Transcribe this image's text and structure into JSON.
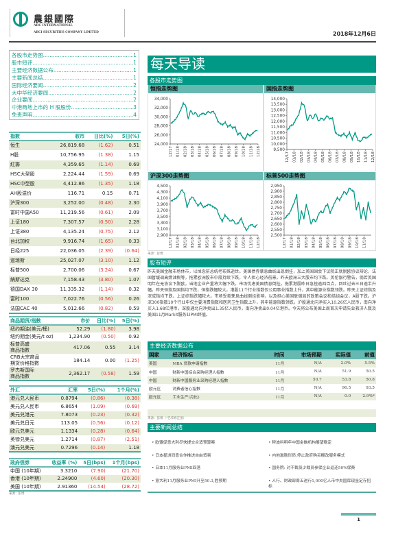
{
  "header": {
    "logo_cn": "農銀國際",
    "logo_en1": "ABC INTERNATIONAL",
    "logo_en2": "ABCI SECURITIES COMPANY LIMITED",
    "date": "2018年12月6日"
  },
  "toc": [
    {
      "label": "各股市走势图",
      "page": "1"
    },
    {
      "label": "股市短评",
      "page": "1"
    },
    {
      "label": "主要经济数据公布",
      "page": "1"
    },
    {
      "label": "主要新闻总结",
      "page": "1"
    },
    {
      "label": "国际经济要闻",
      "page": "2"
    },
    {
      "label": "大中华经济要闻",
      "page": "2"
    },
    {
      "label": "企业要闻",
      "page": "2"
    },
    {
      "label": "中港两地上市的 H 股股份",
      "page": "3"
    },
    {
      "label": "免责声明",
      "page": "4"
    }
  ],
  "indices": {
    "headers": [
      "指數",
      "收市",
      "日比(%)",
      "5日(%)"
    ],
    "rows": [
      [
        "恒生",
        "26,819.68",
        "(1.62)",
        "0.51"
      ],
      [
        "H股",
        "10,756.95",
        "(1.38)",
        "1.15"
      ],
      [
        "紅籌",
        "4,359.65",
        "(1.14)",
        "0.69"
      ],
      [
        "HSC大型股",
        "2,224.44",
        "(1.59)",
        "0.69"
      ],
      [
        "HSC中型股",
        "4,412.86",
        "(1.35)",
        "1.18"
      ],
      [
        "AH股溢价",
        "116.71",
        "0.15",
        "0.71"
      ],
      [
        "沪深300",
        "3,252.00",
        "(0.48)",
        "2.30"
      ],
      [
        "富时中国A50",
        "11,219.56",
        "(0.61)",
        "2.09"
      ],
      [
        "上证180",
        "7,307.57",
        "(0.50)",
        "2.28"
      ],
      [
        "上证380",
        "4,135.24",
        "(0.75)",
        "2.12"
      ],
      [
        "台北加权",
        "9,916.74",
        "(1.65)",
        "0.33"
      ],
      [
        "日经225",
        "22,036.05",
        "(2.39)",
        "(0.64)"
      ],
      [
        "道琼斯",
        "25,027.07",
        "(3.10)",
        "1.12"
      ],
      [
        "标普500",
        "2,700.06",
        "(3.24)",
        "0.67"
      ],
      [
        "納斯达克",
        "7,158.43",
        "(3.80)",
        "1.07"
      ],
      [
        "德国DAX 30",
        "11,335.32",
        "(1.14)",
        "0.32"
      ],
      [
        "富时100",
        "7,022.76",
        "(0.56)",
        "0.26"
      ],
      [
        "法国CAC 40",
        "5,012.66",
        "(0.82)",
        "0.59"
      ]
    ]
  },
  "commodities": {
    "headers": [
      "商品期货/指數",
      "市价",
      "日比(%)",
      "5日(%)"
    ],
    "rows": [
      [
        "纽约期油(美元/桶)",
        "52.29",
        "(1.80)",
        "3.98"
      ],
      [
        "纽约期金(美元/t oz)",
        "1,234.90",
        "(0.50)",
        "0.92"
      ],
      [
        "标普高盛\n商品指數",
        "417.06",
        "0.55",
        "3.14"
      ],
      [
        "CRB大宗商品\n期货价格指數",
        "184.14",
        "0.00",
        "(1.25)"
      ],
      [
        "罗杰斯国际\n商品指數",
        "2,362.17",
        "(0.58)",
        "1.59"
      ]
    ]
  },
  "fx": {
    "headers": [
      "外汇",
      "汇率",
      "5日(%)",
      "1个月(%)"
    ],
    "rows": [
      [
        "港元兑人民币",
        "0.8794",
        "(0.86)",
        "(0.38)"
      ],
      [
        "美元兑人民币",
        "6.8654",
        "(1.09)",
        "(0.69)"
      ],
      [
        "美元兑港元",
        "7.8073",
        "(0.23)",
        "(0.32)"
      ],
      [
        "美元兑日元",
        "113.05",
        "(0.56)",
        "(0.12)"
      ],
      [
        "欧元兑美元",
        "1.1334",
        "(0.28)",
        "(0.64)"
      ],
      [
        "英镑兑美元",
        "1.2714",
        "(0.87)",
        "(2.51)"
      ],
      [
        "澳元兑美元",
        "0.7296",
        "(0.14)",
        "1.18"
      ]
    ]
  },
  "bonds": {
    "headers": [
      "政府债券",
      "收益率 (%)",
      "5日(bps)",
      "1个月(bps)"
    ],
    "rows": [
      [
        "中国 (10年期)",
        "3.3210",
        "(7.90)",
        "(21.70)"
      ],
      [
        "香港 (10年期)",
        "2.24900",
        "(4.60)",
        "(20.30)"
      ],
      [
        "美国 (10年期)",
        "2.91360",
        "(14.54)",
        "(28.72)"
      ]
    ],
    "source": "来源：彭博"
  },
  "banner": "每天导读",
  "charts_section": {
    "title": "各股市走势图",
    "source": "来源：彭博"
  },
  "chart_data": [
    {
      "type": "line",
      "title": "恒指走势图",
      "ylim": [
        24000,
        34000
      ],
      "yticks": [
        "24,000",
        "26,000",
        "28,000",
        "30,000",
        "32,000",
        "34,000"
      ],
      "xticks": [
        "12/17",
        "01/18",
        "02/18",
        "03/18",
        "04/18",
        "05/18",
        "06/18",
        "07/18",
        "08/18",
        "09/18",
        "10/18",
        "11/18",
        "12/18"
      ],
      "values": [
        28500,
        29000,
        29500,
        30500,
        31500,
        33000,
        32500,
        29500,
        31500,
        30500,
        31000,
        30000,
        30500,
        30800,
        30500,
        31200,
        30800,
        31300,
        30500,
        29000,
        28500,
        28300,
        28800,
        27800,
        28200,
        27500,
        27800,
        26000,
        26500,
        25500,
        25000,
        26200,
        25800,
        26300,
        26800,
        27100
      ]
    },
    {
      "type": "line",
      "title": "国指走势图",
      "ylim": [
        9500,
        14000
      ],
      "yticks": [
        "9,500",
        "10,000",
        "10,500",
        "11,000",
        "11,500",
        "12,000",
        "12,500",
        "13,000",
        "13,500",
        "14,000"
      ],
      "xticks": [
        "12/17",
        "01/18",
        "02/18",
        "03/18",
        "04/18",
        "05/18",
        "06/18",
        "07/18",
        "08/18",
        "09/18",
        "10/18",
        "11/18",
        "12/18"
      ],
      "values": [
        11200,
        11600,
        11700,
        12200,
        12600,
        13600,
        13400,
        12000,
        12600,
        12200,
        12700,
        12000,
        12300,
        12100,
        12500,
        12200,
        12300,
        11000,
        10800,
        10700,
        10900,
        10600,
        11000,
        10400,
        11000,
        10300,
        10200,
        10600,
        10500,
        10700,
        10900
      ]
    },
    {
      "type": "line",
      "title": "沪深300走势图",
      "ylim": [
        2900,
        4500
      ],
      "yticks": [
        "2,900",
        "3,100",
        "3,300",
        "3,500",
        "3,700",
        "3,900",
        "4,100",
        "4,300",
        "4,500"
      ],
      "xticks": [
        "12/17",
        "01/18",
        "02/18",
        "03/18",
        "04/18",
        "05/18",
        "06/18",
        "07/18",
        "08/18",
        "09/18",
        "10/18",
        "11/18",
        "12/18"
      ],
      "values": [
        4000,
        4050,
        4100,
        4200,
        4380,
        4250,
        3800,
        4050,
        4150,
        4000,
        3850,
        3950,
        3800,
        3850,
        3900,
        3850,
        3800,
        3750,
        3500,
        3350,
        3550,
        3450,
        3350,
        3400,
        3250,
        3300,
        3450,
        3200,
        3050,
        3200,
        3250,
        3150,
        3250
      ]
    },
    {
      "type": "line",
      "title": "标普500走势图",
      "ylim": [
        2500,
        2950
      ],
      "yticks": [
        "2,500",
        "2,550",
        "2,600",
        "2,650",
        "2,700",
        "2,750",
        "2,800",
        "2,850",
        "2,900",
        "2,950"
      ],
      "xticks": [
        "12/17",
        "01/18",
        "02/18",
        "03/18",
        "04/18",
        "05/18",
        "06/18",
        "07/18",
        "08/18",
        "09/18",
        "10/18",
        "11/18"
      ],
      "values": [
        2650,
        2680,
        2700,
        2750,
        2800,
        2870,
        2600,
        2720,
        2650,
        2780,
        2700,
        2600,
        2650,
        2620,
        2680,
        2720,
        2700,
        2760,
        2780,
        2700,
        2750,
        2800,
        2840,
        2820,
        2860,
        2900,
        2870,
        2930,
        2910,
        2900,
        2730,
        2800,
        2650,
        2750,
        2640,
        2800,
        2700
      ]
    }
  ],
  "commentary": {
    "title": "股市短评",
    "text": "昨天美国金融市场休市，以悼念前总统老布殊逝世。美国债券孳息曲线出现倒挂，加上英国国会下议院正就脱欧协议辩论，法国暂缓调高燃油税等，拖累欧洲股市中段持续下跌，令人担心经济前景。昨天欧洲三大股市均下跌。英伦银行警告，倘若英国明年在无协议下脱欧，当地企业产量将大幅下跌。市场忧虑美国债息倒挂，拖累港股昨日急挫逾四百点，回吐过去三日逾半升幅。昨天恒指及国指均下跌，恒指跌幅较大。港股11个行业指数仅公用事业指数上升，其中能源业指数领跌。昨天上证综指及深成指均下跌，上证综指跌幅较大。市场受美孳息曲线倒挂影响，以及担心美国联储局的政策会议和结组会议，A股下跌。沪深300指数10个行业中仅主要消费指数和医药卫生指数上升，其中能源指数领跌。沪股通北向净买入10.26亿人民币，南向净买入1.68亿港币。深股通北向净卖出1.35亿人民币，南向净卖出0.04亿港币。今天将公布美国上周首次申请失业救济人数及美国11月Markit服务业PMI终值。"
  },
  "economic": {
    "title": "主要经济数据公布",
    "headers": [
      "国家",
      "经济指标",
      "时间",
      "市场预期",
      "实际值",
      "前值"
    ],
    "rows": [
      [
        "美国",
        "MBA 贷款申请指數",
        "11月",
        "N/A",
        "2.0%",
        "5.5%"
      ],
      [
        "中国",
        "财新中国综合采购经理人指數",
        "11月",
        "N/A",
        "51.9",
        "50.5"
      ],
      [
        "中国",
        "财新中国服务业采购经理人指數",
        "11月",
        "50.7",
        "53.8",
        "50.8"
      ],
      [
        "欧元区",
        "消费者信心指數",
        "11月",
        "N/A",
        "96.5",
        "93.5"
      ],
      [
        "欧元区",
        "工业生产(月比)",
        "11月",
        "N/A",
        "0.0",
        "2.9%*"
      ]
    ],
    "source": "来源：彭博（*已作修正值）"
  },
  "news": {
    "title": "主要新闻总结",
    "left": [
      "欧盟促意大利尽快提交合适预算案",
      "日本星洲同意合作推进自由贸易",
      "日本11月服务业PMI回落",
      "意大利11月服务业PMI升至50.3,胜预期"
    ],
    "right": [
      "穆迪料明年中国金融机构展望稳定",
      "内地遏隐形债,停止政府购买棚改服务模式",
      "国务院: 对不裁员少裁员参保企业返还50%保费",
      "人行、财政部周五进行1,000亿人币中央国库现金定存招标"
    ]
  },
  "page_number": "1",
  "colors": {
    "teal": "#009986",
    "teal_light": "#66b9b1",
    "negative": "#e0332f",
    "row_alt": "#e6ecd7"
  }
}
